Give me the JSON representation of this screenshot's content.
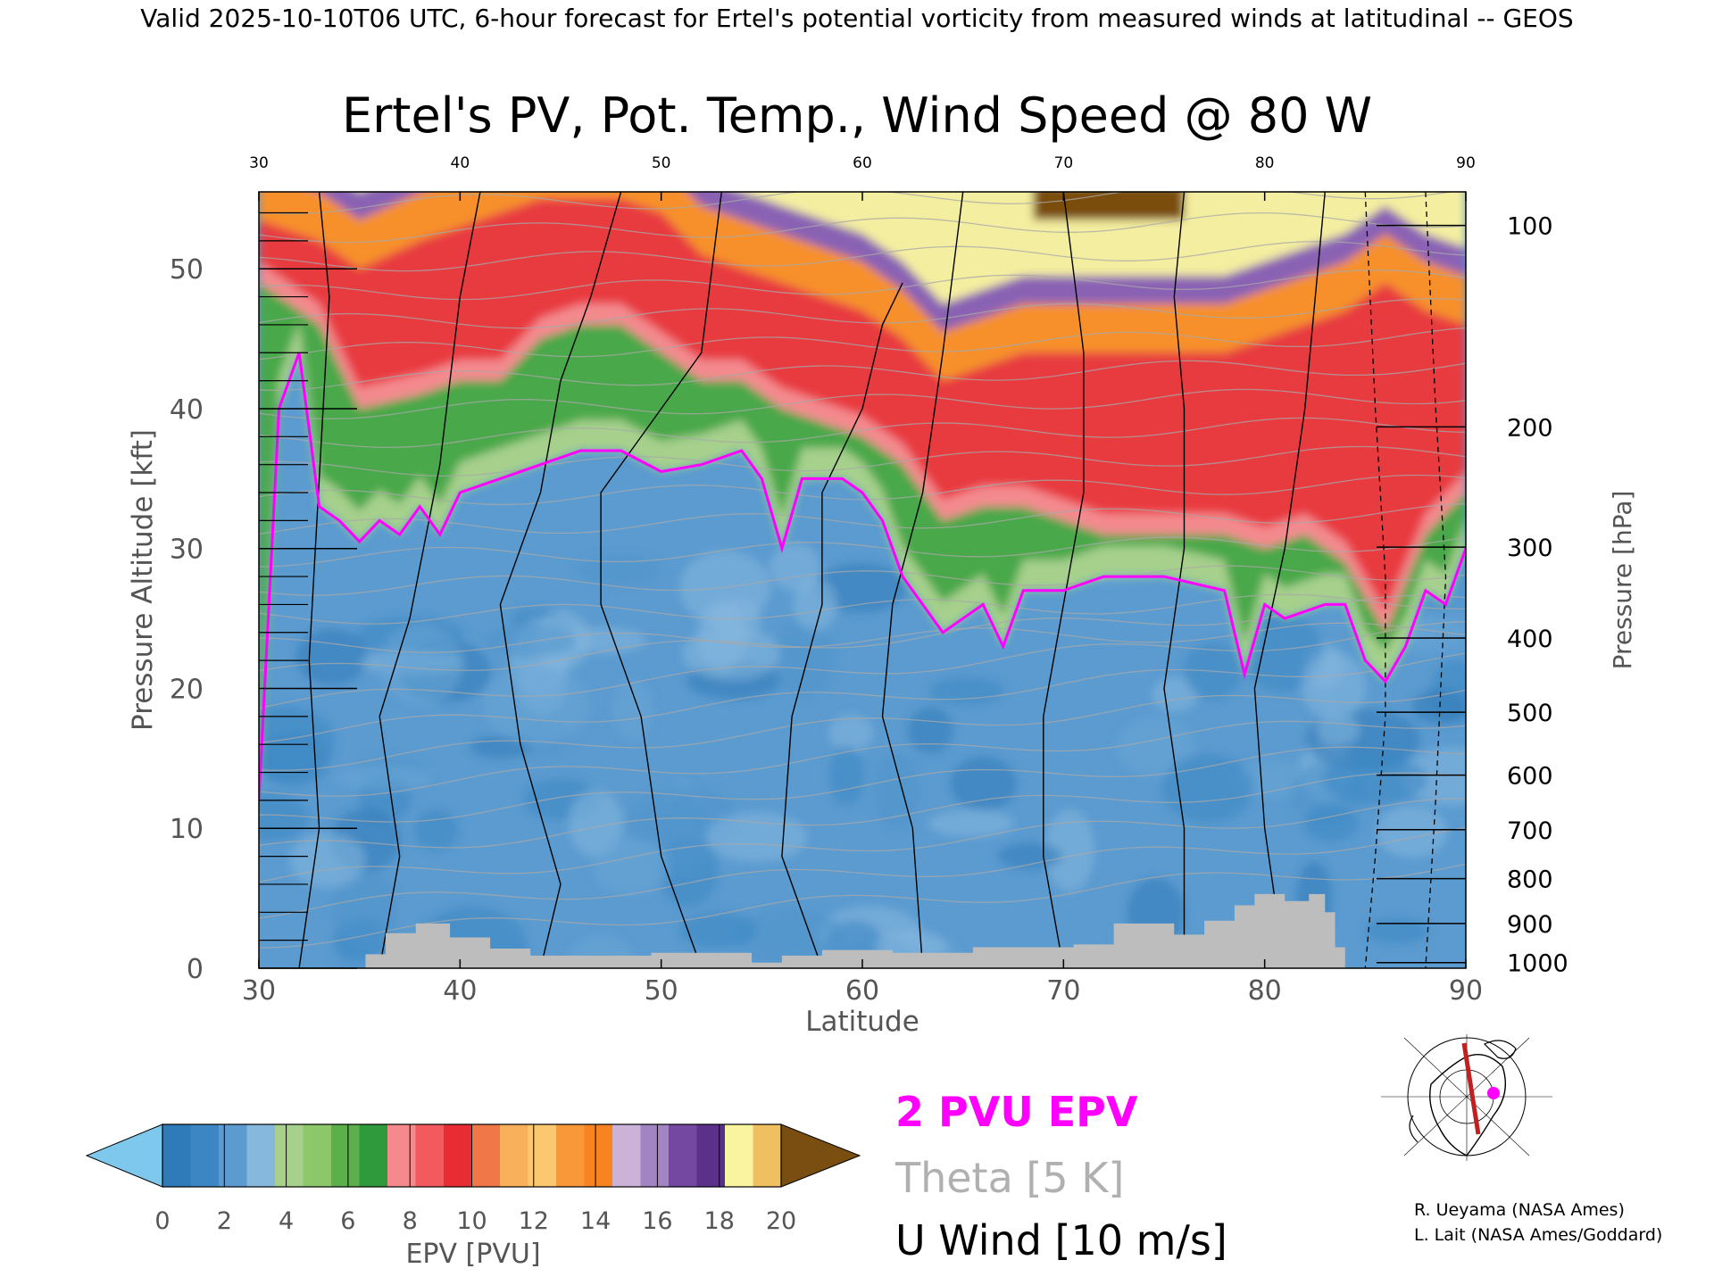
{
  "header": {
    "text": "Valid 2025-10-10T06 UTC, 6-hour forecast for Ertel's potential vorticity from measured winds at latitudinal -- GEOS"
  },
  "chart_data": {
    "type": "heatmap",
    "title": "Ertel's PV, Pot. Temp., Wind Speed @ 80 W",
    "xlabel": "Latitude",
    "ylabel_left": "Pressure Altitude [kft]",
    "ylabel_right": "Pressure [hPa]",
    "xlim": [
      30,
      90
    ],
    "ylim": [
      0,
      55.5
    ],
    "x_ticks": [
      "30",
      "40",
      "50",
      "60",
      "70",
      "80",
      "90"
    ],
    "y_ticks": [
      "0",
      "10",
      "20",
      "30",
      "40",
      "50"
    ],
    "pressure_ticks": [
      {
        "label": "100",
        "kft": 53.1
      },
      {
        "label": "200",
        "kft": 38.7
      },
      {
        "label": "300",
        "kft": 30.1
      },
      {
        "label": "400",
        "kft": 23.6
      },
      {
        "label": "500",
        "kft": 18.3
      },
      {
        "label": "600",
        "kft": 13.8
      },
      {
        "label": "700",
        "kft": 9.9
      },
      {
        "label": "800",
        "kft": 6.4
      },
      {
        "label": "900",
        "kft": 3.2
      },
      {
        "label": "1000",
        "kft": 0.4
      }
    ],
    "tropopause_2pvu_kft": [
      {
        "lat": 30,
        "kft": 12
      },
      {
        "lat": 31,
        "kft": 40
      },
      {
        "lat": 32,
        "kft": 44
      },
      {
        "lat": 33,
        "kft": 33
      },
      {
        "lat": 34,
        "kft": 32
      },
      {
        "lat": 35,
        "kft": 30.5
      },
      {
        "lat": 36,
        "kft": 32
      },
      {
        "lat": 37,
        "kft": 31
      },
      {
        "lat": 38,
        "kft": 33
      },
      {
        "lat": 39,
        "kft": 31
      },
      {
        "lat": 40,
        "kft": 34
      },
      {
        "lat": 42,
        "kft": 35
      },
      {
        "lat": 44,
        "kft": 36
      },
      {
        "lat": 46,
        "kft": 37
      },
      {
        "lat": 48,
        "kft": 37
      },
      {
        "lat": 50,
        "kft": 35.5
      },
      {
        "lat": 52,
        "kft": 36
      },
      {
        "lat": 54,
        "kft": 37
      },
      {
        "lat": 55,
        "kft": 35
      },
      {
        "lat": 56,
        "kft": 30
      },
      {
        "lat": 57,
        "kft": 35
      },
      {
        "lat": 59,
        "kft": 35
      },
      {
        "lat": 60,
        "kft": 34
      },
      {
        "lat": 61,
        "kft": 32
      },
      {
        "lat": 62,
        "kft": 28
      },
      {
        "lat": 63,
        "kft": 26
      },
      {
        "lat": 64,
        "kft": 24
      },
      {
        "lat": 66,
        "kft": 26
      },
      {
        "lat": 67,
        "kft": 23
      },
      {
        "lat": 68,
        "kft": 27
      },
      {
        "lat": 70,
        "kft": 27
      },
      {
        "lat": 72,
        "kft": 28
      },
      {
        "lat": 75,
        "kft": 28
      },
      {
        "lat": 78,
        "kft": 27
      },
      {
        "lat": 79,
        "kft": 21
      },
      {
        "lat": 80,
        "kft": 26
      },
      {
        "lat": 81,
        "kft": 25
      },
      {
        "lat": 83,
        "kft": 26
      },
      {
        "lat": 84,
        "kft": 26
      },
      {
        "lat": 85,
        "kft": 22
      },
      {
        "lat": 86,
        "kft": 20.5
      },
      {
        "lat": 87,
        "kft": 23
      },
      {
        "lat": 88,
        "kft": 27
      },
      {
        "lat": 89,
        "kft": 26
      },
      {
        "lat": 90,
        "kft": 30
      }
    ],
    "pv_top_profile": [
      {
        "lat": 30,
        "green": 49,
        "red": 53.5
      },
      {
        "lat": 33,
        "green": 46,
        "red": 52
      },
      {
        "lat": 35,
        "green": 40,
        "red": 50
      },
      {
        "lat": 38,
        "green": 41,
        "red": 52
      },
      {
        "lat": 40,
        "green": 42,
        "red": 53
      },
      {
        "lat": 42,
        "green": 42,
        "red": 54
      },
      {
        "lat": 44,
        "green": 45,
        "red": 55
      },
      {
        "lat": 46,
        "green": 46,
        "red": 55
      },
      {
        "lat": 48,
        "green": 46,
        "red": 55
      },
      {
        "lat": 50,
        "green": 44,
        "red": 54
      },
      {
        "lat": 52,
        "green": 42,
        "red": 51
      },
      {
        "lat": 54,
        "green": 42,
        "red": 50
      },
      {
        "lat": 56,
        "green": 40,
        "red": 49
      },
      {
        "lat": 58,
        "green": 39,
        "red": 48
      },
      {
        "lat": 60,
        "green": 38,
        "red": 47
      },
      {
        "lat": 62,
        "green": 36,
        "red": 45
      },
      {
        "lat": 64,
        "green": 32,
        "red": 42
      },
      {
        "lat": 66,
        "green": 33,
        "red": 43
      },
      {
        "lat": 68,
        "green": 33,
        "red": 44
      },
      {
        "lat": 70,
        "green": 32,
        "red": 44
      },
      {
        "lat": 72,
        "green": 31,
        "red": 44
      },
      {
        "lat": 74,
        "green": 31,
        "red": 44
      },
      {
        "lat": 76,
        "green": 31,
        "red": 44
      },
      {
        "lat": 78,
        "green": 31,
        "red": 44
      },
      {
        "lat": 80,
        "green": 30,
        "red": 45
      },
      {
        "lat": 82,
        "green": 31,
        "red": 46
      },
      {
        "lat": 84,
        "green": 29,
        "red": 47
      },
      {
        "lat": 86,
        "green": 24,
        "red": 49
      },
      {
        "lat": 88,
        "green": 31,
        "red": 47
      },
      {
        "lat": 90,
        "green": 34,
        "red": 46
      }
    ],
    "terrain_kft": [
      {
        "lat": 35.3,
        "kft": 1
      },
      {
        "lat": 36.3,
        "kft": 2.5
      },
      {
        "lat": 37.8,
        "kft": 3.2
      },
      {
        "lat": 39.5,
        "kft": 2.2
      },
      {
        "lat": 41.5,
        "kft": 1.4
      },
      {
        "lat": 43.5,
        "kft": 0.9
      },
      {
        "lat": 46.5,
        "kft": 0.9
      },
      {
        "lat": 49.5,
        "kft": 1.1
      },
      {
        "lat": 54.5,
        "kft": 0.4
      },
      {
        "lat": 56,
        "kft": 0.9
      },
      {
        "lat": 58,
        "kft": 1.3
      },
      {
        "lat": 61.5,
        "kft": 1.1
      },
      {
        "lat": 65.5,
        "kft": 1.5
      },
      {
        "lat": 70.5,
        "kft": 1.7
      },
      {
        "lat": 72.5,
        "kft": 3.2
      },
      {
        "lat": 75.5,
        "kft": 2.4
      },
      {
        "lat": 77,
        "kft": 3.4
      },
      {
        "lat": 78.5,
        "kft": 4.5
      },
      {
        "lat": 79.5,
        "kft": 5.3
      },
      {
        "lat": 81,
        "kft": 4.8
      },
      {
        "lat": 82.2,
        "kft": 5.3
      },
      {
        "lat": 83,
        "kft": 4
      },
      {
        "lat": 83.5,
        "kft": 1.5
      }
    ],
    "colorbar": {
      "label": "EPV [PVU]",
      "ticks": [
        "0",
        "2",
        "4",
        "6",
        "8",
        "10",
        "12",
        "14",
        "16",
        "18",
        "20"
      ],
      "colors": [
        "#7ec8ee",
        "#2f7ab8",
        "#3b86c3",
        "#5b9bd0",
        "#86b8de",
        "#a6d08c",
        "#8cc86a",
        "#5cb04c",
        "#2f9a3c",
        "#f48a8e",
        "#f25a5e",
        "#e82c34",
        "#f07848",
        "#f8b05a",
        "#fbc870",
        "#f89838",
        "#f78420",
        "#cbb2d6",
        "#a284c2",
        "#7448a0",
        "#5a3088",
        "#f8f4a0",
        "#f0c060",
        "#7a4e10"
      ]
    },
    "legend": {
      "epv": "2 PVU EPV",
      "theta": "Theta [5 K]",
      "wind": "U Wind [10 m/s]",
      "colors": {
        "epv": "#ff00ff",
        "theta": "#b0b0b0",
        "wind": "#000000"
      }
    },
    "credits": [
      "R. Ueyama (NASA Ames)",
      "L. Lait (NASA Ames/Goddard)"
    ],
    "inset_map": {
      "description_icon": "polar-map-icon",
      "track_color": "#c02020",
      "marker_color": "#ff00ff"
    }
  }
}
